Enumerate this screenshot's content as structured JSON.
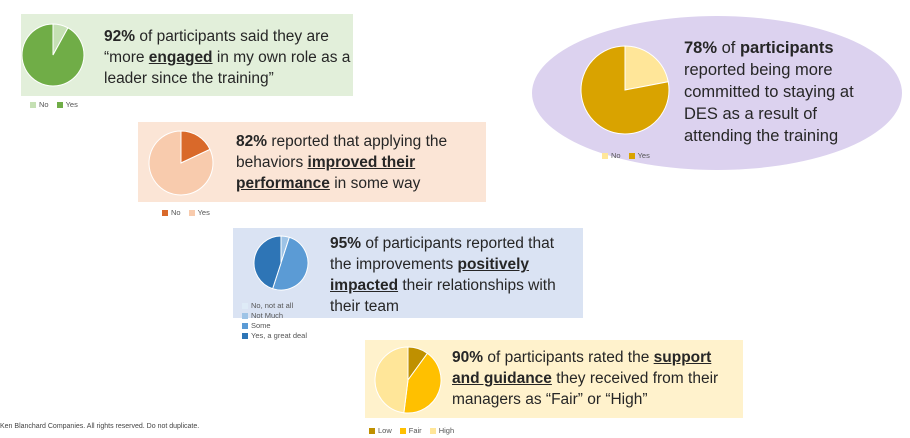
{
  "stats": [
    {
      "id": "engaged",
      "parts": [
        {
          "t": "92%",
          "s": "b"
        },
        {
          "t": " of participants said they are “more ",
          "s": ""
        },
        {
          "t": "engaged",
          "s": "u"
        },
        {
          "t": " in my own role as a leader since the training”",
          "s": ""
        }
      ]
    },
    {
      "id": "committed",
      "parts": [
        {
          "t": "78%",
          "s": "b"
        },
        {
          "t": " of ",
          "s": ""
        },
        {
          "t": "participants",
          "s": "b"
        },
        {
          "t": " reported being more committed to staying at DES as a result of attending the training",
          "s": ""
        }
      ]
    },
    {
      "id": "performance",
      "parts": [
        {
          "t": "82%",
          "s": "b"
        },
        {
          "t": " reported that applying the behaviors ",
          "s": ""
        },
        {
          "t": "improved their performance",
          "s": "u"
        },
        {
          "t": " in some way",
          "s": ""
        }
      ]
    },
    {
      "id": "relationships",
      "parts": [
        {
          "t": "95%",
          "s": "b"
        },
        {
          "t": " of participants reported that the improvements ",
          "s": ""
        },
        {
          "t": "positively impacted",
          "s": "u"
        },
        {
          "t": " their relationships with their team",
          "s": ""
        }
      ]
    },
    {
      "id": "support",
      "parts": [
        {
          "t": "90%",
          "s": "b"
        },
        {
          "t": " of participants rated the ",
          "s": ""
        },
        {
          "t": "support and guidance",
          "s": "u"
        },
        {
          "t": " they received from their managers as “Fair” or “High”",
          "s": ""
        }
      ]
    }
  ],
  "chart_data": [
    {
      "type": "pie",
      "id": "engaged",
      "categories": [
        "No",
        "Yes"
      ],
      "values": [
        8,
        92
      ],
      "colors": [
        "#c5e0b4",
        "#70ad47"
      ],
      "legend_position": "bottom-left"
    },
    {
      "type": "pie",
      "id": "committed",
      "categories": [
        "No",
        "Yes"
      ],
      "values": [
        22,
        78
      ],
      "colors": [
        "#ffe699",
        "#d9a300"
      ],
      "legend_position": "bottom"
    },
    {
      "type": "pie",
      "id": "performance",
      "categories": [
        "No",
        "Yes"
      ],
      "values": [
        18,
        82
      ],
      "colors": [
        "#d9692a",
        "#f8cbad"
      ],
      "legend_position": "bottom"
    },
    {
      "type": "pie",
      "id": "relationships",
      "categories": [
        "No, not at all",
        "Not Much",
        "Some",
        "Yes, a great deal"
      ],
      "values": [
        0,
        5,
        50,
        45
      ],
      "colors": [
        "#deebf7",
        "#9dc3e6",
        "#5b9bd5",
        "#2e75b6"
      ],
      "legend_position": "bottom-left"
    },
    {
      "type": "pie",
      "id": "support",
      "categories": [
        "Low",
        "Fair",
        "High"
      ],
      "values": [
        10,
        42,
        48
      ],
      "colors": [
        "#bf9000",
        "#ffc000",
        "#ffe699"
      ],
      "legend_position": "bottom"
    }
  ],
  "footer": "Ken Blanchard Companies. All rights reserved. Do not duplicate."
}
